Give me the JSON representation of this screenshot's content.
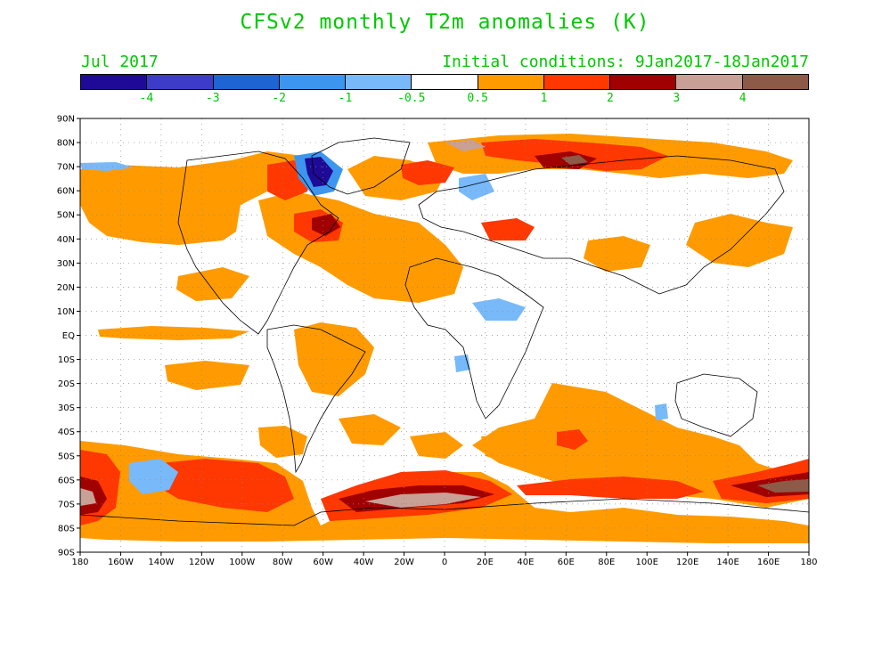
{
  "title": "CFSv2 monthly T2m anomalies (K)",
  "subtitle_left": "Jul 2017",
  "subtitle_right": "Initial conditions: 9Jan2017-18Jan2017",
  "colorbar": {
    "colors": [
      "#1e0a96",
      "#3c3cc8",
      "#1e64d2",
      "#3c96f0",
      "#78b9fa",
      "#ffffff",
      "#ff9b00",
      "#ff3700",
      "#a00000",
      "#c8a096",
      "#8c5a46"
    ],
    "labels": [
      "-4",
      "-3",
      "-2",
      "-1",
      "-0.5",
      "0.5",
      "1",
      "2",
      "3",
      "4"
    ]
  },
  "lat_labels": [
    "90N",
    "80N",
    "70N",
    "60N",
    "50N",
    "40N",
    "30N",
    "20N",
    "10N",
    "EQ",
    "10S",
    "20S",
    "30S",
    "40S",
    "50S",
    "60S",
    "70S",
    "80S",
    "90S"
  ],
  "lon_labels": [
    "180",
    "160W",
    "140W",
    "120W",
    "100W",
    "80W",
    "60W",
    "40W",
    "20W",
    "0",
    "20E",
    "40E",
    "60E",
    "80E",
    "100E",
    "120E",
    "140E",
    "160E",
    "180"
  ]
}
